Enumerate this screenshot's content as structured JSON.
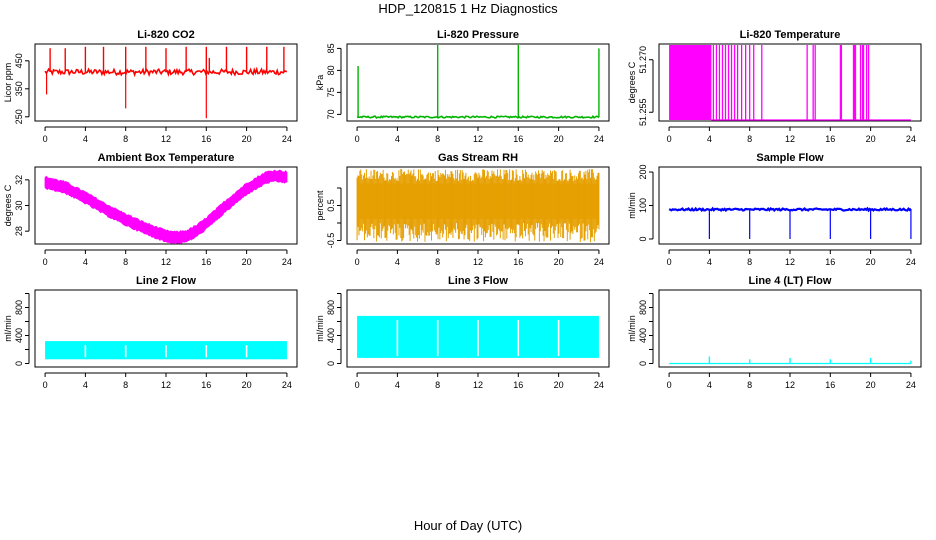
{
  "page": {
    "title": "HDP_120815  1 Hz Diagnostics",
    "xlabel": "Hour of Day (UTC)"
  },
  "chart_data": [
    {
      "type": "line",
      "title": "Li-820 CO2",
      "ylabel": "Licor ppm",
      "color": "#ff0000",
      "x_ticks": [
        0,
        4,
        8,
        12,
        16,
        20,
        24
      ],
      "y_ticks": [
        250,
        350,
        450
      ],
      "ylim": [
        235,
        510
      ],
      "baseline": 410,
      "noise": 10,
      "spikes_up": [
        [
          0.5,
          495
        ],
        [
          2,
          495
        ],
        [
          4,
          500
        ],
        [
          5.8,
          500
        ],
        [
          8,
          500
        ],
        [
          10,
          500
        ],
        [
          12,
          495
        ],
        [
          14,
          500
        ],
        [
          16,
          500
        ],
        [
          16.3,
          460
        ],
        [
          18,
          500
        ],
        [
          20,
          500
        ],
        [
          22,
          500
        ],
        [
          23.7,
          500
        ]
      ],
      "spikes_down": [
        [
          0.15,
          330
        ],
        [
          8,
          280
        ],
        [
          16,
          245
        ]
      ]
    },
    {
      "type": "line",
      "title": "Li-820 Pressure",
      "ylabel": "kPa",
      "color": "#00b400",
      "x_ticks": [
        0,
        4,
        8,
        12,
        16,
        20,
        24
      ],
      "y_ticks": [
        70,
        75,
        80,
        85
      ],
      "ylim": [
        68.5,
        86
      ],
      "baseline": 69.4,
      "noise": 0.2,
      "spikes_up": [
        [
          0.1,
          81
        ],
        [
          8,
          86
        ],
        [
          16,
          86
        ],
        [
          24,
          85
        ]
      ],
      "spikes_down": []
    },
    {
      "type": "line",
      "title": "Li-820 Temperature",
      "ylabel": "degrees C",
      "color": "#ff00ff",
      "x_ticks": [
        0,
        4,
        8,
        12,
        16,
        20,
        24
      ],
      "y_ticks": [
        51.255,
        51.27
      ],
      "y_tick_labels": [
        "51.255",
        "51.270"
      ],
      "ylim": [
        51.2525,
        51.2745
      ],
      "baseline": 51.2525,
      "dense_range": [
        0,
        4.2
      ],
      "toggles": [
        4.4,
        4.7,
        5.0,
        5.3,
        5.6,
        5.9,
        6.2,
        6.5,
        6.8,
        7.2,
        7.6,
        8.0,
        8.4,
        9.2,
        13.7,
        14.3,
        14.5,
        17.0,
        17.1,
        18.3,
        18.4,
        18.5,
        19.0,
        19.2,
        19.3,
        19.6,
        19.8
      ]
    },
    {
      "type": "line",
      "title": "Ambient Box Temperature",
      "ylabel": "degrees C",
      "color": "#ff00ff",
      "x_ticks": [
        0,
        4,
        8,
        12,
        16,
        20,
        24
      ],
      "y_ticks": [
        28,
        30,
        32
      ],
      "ylim": [
        27,
        33
      ],
      "curve_hours": [
        0,
        2,
        4,
        6,
        8,
        10,
        12,
        13,
        14,
        15,
        16,
        18,
        20,
        22,
        23,
        24
      ],
      "curve_temps": [
        31.8,
        31.4,
        30.6,
        29.7,
        28.9,
        28.2,
        27.6,
        27.5,
        27.6,
        28.0,
        28.6,
        30.0,
        31.3,
        32.2,
        32.3,
        32.2
      ],
      "band": 0.7
    },
    {
      "type": "line",
      "title": "Gas Stream RH",
      "ylabel": "percent",
      "color": "#e69f00",
      "x_ticks": [
        0,
        4,
        8,
        12,
        16,
        20,
        24
      ],
      "y_ticks": [
        -0.5,
        0.5
      ],
      "y_tick_labels": [
        "-0.5",
        "0.5"
      ],
      "extra_y_ticks": [
        0,
        1
      ],
      "ylim": [
        -0.6,
        1.6
      ],
      "band_low": 0.0,
      "band_high": 1.3
    },
    {
      "type": "line",
      "title": "Sample Flow",
      "ylabel": "ml/min",
      "color": "#0000ff",
      "x_ticks": [
        0,
        4,
        8,
        12,
        16,
        20,
        24
      ],
      "y_ticks": [
        0,
        100,
        200
      ],
      "ylim": [
        -15,
        215
      ],
      "baseline": 88,
      "noise": 3,
      "spikes_down": [
        [
          4,
          0
        ],
        [
          8,
          0
        ],
        [
          12,
          0
        ],
        [
          16,
          0
        ],
        [
          20,
          0
        ],
        [
          24,
          0
        ]
      ]
    },
    {
      "type": "line",
      "title": "Line 2 Flow",
      "ylabel": "ml/min",
      "color": "#00ffff",
      "x_ticks": [
        0,
        4,
        8,
        12,
        16,
        20,
        24
      ],
      "y_ticks": [
        0,
        400,
        800
      ],
      "extra_y_ticks": [
        200,
        600,
        1000
      ],
      "ylim": [
        -50,
        1050
      ],
      "band_low": 60,
      "band_high": 320,
      "gaps": [
        4,
        8,
        12,
        16,
        20
      ]
    },
    {
      "type": "line",
      "title": "Line 3 Flow",
      "ylabel": "ml/min",
      "color": "#00ffff",
      "x_ticks": [
        0,
        4,
        8,
        12,
        16,
        20,
        24
      ],
      "y_ticks": [
        0,
        400,
        800
      ],
      "extra_y_ticks": [
        200,
        600,
        1000
      ],
      "ylim": [
        -50,
        1050
      ],
      "band_low": 80,
      "band_high": 680,
      "gaps": [
        4,
        8,
        12,
        16,
        20
      ]
    },
    {
      "type": "line",
      "title": "Line 4 (LT) Flow",
      "ylabel": "ml/min",
      "color": "#00ffff",
      "x_ticks": [
        0,
        4,
        8,
        12,
        16,
        20,
        24
      ],
      "y_ticks": [
        0,
        400,
        800
      ],
      "extra_y_ticks": [
        200,
        600,
        1000
      ],
      "ylim": [
        -50,
        1050
      ],
      "baseline": 0,
      "spikes_up": [
        [
          4,
          100
        ],
        [
          8,
          60
        ],
        [
          12,
          80
        ],
        [
          16,
          60
        ],
        [
          20,
          80
        ],
        [
          24,
          40
        ]
      ]
    }
  ]
}
